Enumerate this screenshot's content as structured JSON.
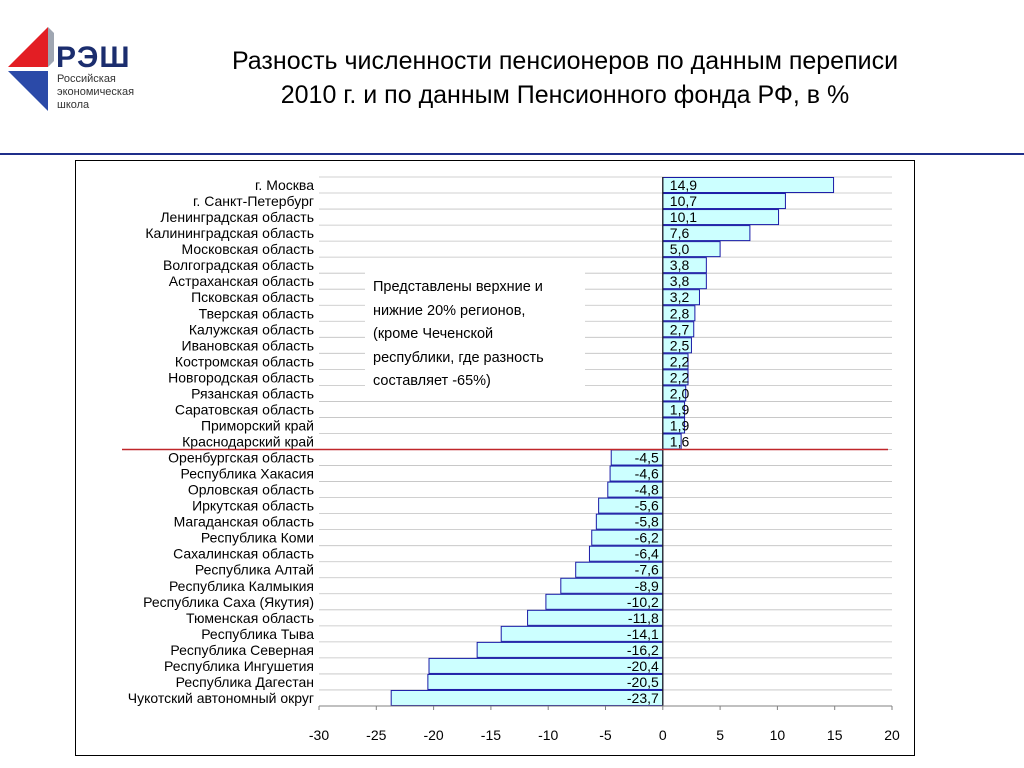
{
  "header": {
    "title_line1": "Разность численности пенсионеров по данным переписи",
    "title_line2": "2010 г. и по данным Пенсионного фонда РФ, в %"
  },
  "logo": {
    "name": "РЭШ",
    "sub_lines": [
      "Российская",
      "экономическая",
      "школа"
    ],
    "colors": {
      "red": "#e31e24",
      "blue": "#2b4aa8",
      "gray": "#9fa6b2"
    }
  },
  "colors": {
    "bar_fill": "#ccffff",
    "bar_stroke": "#1a1aa6",
    "divider": "#c0262a",
    "rule": "#1f2e8a",
    "grid": "#c0c0c0"
  },
  "note": {
    "lines": [
      "Представлены верхние и",
      "нижние 20% регионов,",
      "(кроме Чеченской",
      "республики, где разность",
      "составляет -65%)"
    ]
  },
  "chart_data": {
    "type": "bar",
    "orientation": "horizontal",
    "categories": [
      "г. Москва",
      "г. Санкт-Петербург",
      "Ленинградская область",
      "Калининградская область",
      "Московская область",
      "Волгоградская область",
      "Астраханская область",
      "Псковская область",
      "Тверская область",
      "Калужская область",
      "Ивановская область",
      "Костромская область",
      "Новгородская область",
      "Рязанская область",
      "Саратовская область",
      "Приморский край",
      "Краснодарский край",
      "Оренбургская область",
      "Республика Хакасия",
      "Орловская область",
      "Иркутская область",
      "Магаданская область",
      "Республика Коми",
      "Сахалинская область",
      "Республика Алтай",
      "Республика Калмыкия",
      "Республика Саха (Якутия)",
      "Тюменская область",
      "Республика Тыва",
      "Республика Северная",
      "Республика Ингушетия",
      "Республика Дагестан",
      "Чукотский автономный округ"
    ],
    "values": [
      14.9,
      10.7,
      10.1,
      7.6,
      5.0,
      3.8,
      3.8,
      3.2,
      2.8,
      2.7,
      2.5,
      2.2,
      2.2,
      2.0,
      1.9,
      1.9,
      1.6,
      -4.5,
      -4.6,
      -4.8,
      -5.6,
      -5.8,
      -6.2,
      -6.4,
      -7.6,
      -8.9,
      -10.2,
      -11.8,
      -14.1,
      -16.2,
      -20.4,
      -20.5,
      -23.7
    ],
    "value_labels": [
      "14,9",
      "10,7",
      "10,1",
      "7,6",
      "5,0",
      "3,8",
      "3,8",
      "3,2",
      "2,8",
      "2,7",
      "2,5",
      "2,2",
      "2,2",
      "2,0",
      "1,9",
      "1,9",
      "1,6",
      "-4,5",
      "-4,6",
      "-4,8",
      "-5,6",
      "-5,8",
      "-6,2",
      "-6,4",
      "-7,6",
      "-8,9",
      "-10,2",
      "-11,8",
      "-14,1",
      "-16,2",
      "-20,4",
      "-20,5",
      "-23,7"
    ],
    "xlim": [
      -30,
      20
    ],
    "x_ticks": [
      -30,
      -25,
      -20,
      -15,
      -10,
      -5,
      0,
      5,
      10,
      15,
      20
    ],
    "grid": true,
    "divider_after_index": 16,
    "title": "",
    "xlabel": "",
    "ylabel": ""
  }
}
